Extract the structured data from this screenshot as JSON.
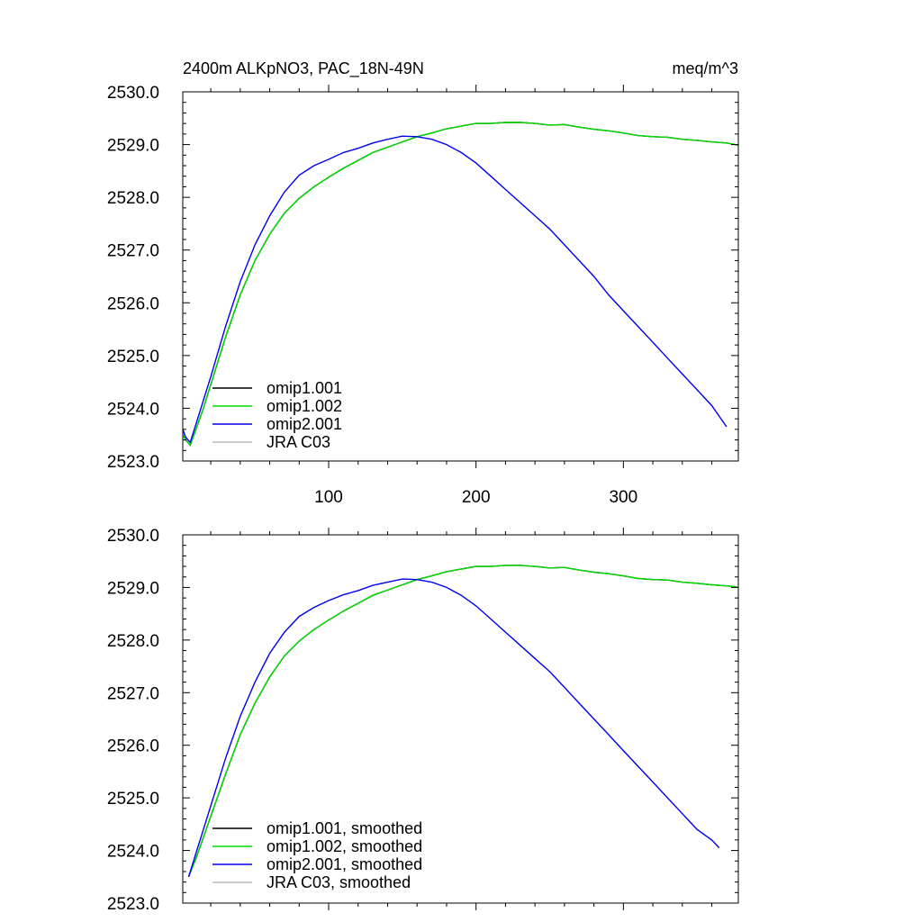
{
  "figure": {
    "title_left": "2400m ALKpNO3, PAC_18N-49N",
    "title_right": "meq/m^3"
  },
  "chart_data": [
    {
      "type": "line",
      "title": "2400m ALKpNO3, PAC_18N-49N",
      "units": "meq/m^3",
      "xlabel": "",
      "ylabel": "",
      "xlim": [
        1,
        378
      ],
      "ylim": [
        2523.0,
        2530.0
      ],
      "xticks": [
        100,
        200,
        300
      ],
      "xtick_labels": [
        "100",
        "200",
        "300"
      ],
      "yticks": [
        2523.0,
        2524.0,
        2525.0,
        2526.0,
        2527.0,
        2528.0,
        2529.0,
        2530.0
      ],
      "ytick_labels": [
        "2523.0",
        "2524.0",
        "2525.0",
        "2526.0",
        "2527.0",
        "2528.0",
        "2529.0",
        "2530.0"
      ],
      "grid": false,
      "legend_position": "bottom-left",
      "series": [
        {
          "name": "omip1.001",
          "color": "#000000",
          "x": [
            1,
            3,
            6,
            10,
            15,
            20,
            30,
            40,
            50,
            60,
            70,
            80,
            90,
            100,
            110,
            120,
            130,
            140,
            150,
            160,
            170,
            180,
            190,
            200,
            210,
            220,
            230,
            240,
            250,
            260,
            270,
            280,
            290,
            300,
            310,
            320,
            330,
            340,
            350,
            360,
            370,
            378
          ],
          "y": [
            2523.5,
            2523.4,
            2523.3,
            2523.6,
            2524.0,
            2524.45,
            2525.35,
            2526.15,
            2526.8,
            2527.3,
            2527.7,
            2527.98,
            2528.2,
            2528.38,
            2528.55,
            2528.7,
            2528.85,
            2528.95,
            2529.05,
            2529.15,
            2529.22,
            2529.3,
            2529.35,
            2529.4,
            2529.4,
            2529.42,
            2529.42,
            2529.4,
            2529.37,
            2529.38,
            2529.33,
            2529.29,
            2529.26,
            2529.22,
            2529.17,
            2529.15,
            2529.14,
            2529.1,
            2529.08,
            2529.05,
            2529.03,
            2528.99
          ]
        },
        {
          "name": "omip1.002",
          "color": "#00dd00",
          "x": [
            1,
            3,
            6,
            10,
            15,
            20,
            30,
            40,
            50,
            60,
            70,
            80,
            90,
            100,
            110,
            120,
            130,
            140,
            150,
            160,
            170,
            180,
            190,
            200,
            210,
            220,
            230,
            240,
            250,
            260,
            270,
            280,
            290,
            300,
            310,
            320,
            330,
            340,
            350,
            360,
            370,
            378
          ],
          "y": [
            2523.5,
            2523.4,
            2523.3,
            2523.6,
            2524.0,
            2524.45,
            2525.35,
            2526.15,
            2526.8,
            2527.3,
            2527.7,
            2527.98,
            2528.2,
            2528.38,
            2528.55,
            2528.7,
            2528.85,
            2528.95,
            2529.05,
            2529.15,
            2529.22,
            2529.3,
            2529.35,
            2529.4,
            2529.4,
            2529.42,
            2529.42,
            2529.4,
            2529.37,
            2529.38,
            2529.33,
            2529.29,
            2529.26,
            2529.22,
            2529.17,
            2529.15,
            2529.14,
            2529.1,
            2529.08,
            2529.05,
            2529.03,
            2528.99
          ]
        },
        {
          "name": "omip2.001",
          "color": "#0000ee",
          "x": [
            1,
            3,
            6,
            10,
            15,
            20,
            30,
            40,
            50,
            60,
            70,
            80,
            90,
            100,
            110,
            120,
            130,
            140,
            150,
            160,
            170,
            180,
            190,
            200,
            210,
            220,
            230,
            240,
            250,
            260,
            270,
            280,
            290,
            300,
            310,
            320,
            330,
            340,
            350,
            360,
            370
          ],
          "y": [
            2523.6,
            2523.45,
            2523.35,
            2523.7,
            2524.15,
            2524.6,
            2525.55,
            2526.4,
            2527.1,
            2527.65,
            2528.1,
            2528.42,
            2528.6,
            2528.72,
            2528.85,
            2528.93,
            2529.03,
            2529.1,
            2529.16,
            2529.15,
            2529.1,
            2529.0,
            2528.85,
            2528.65,
            2528.4,
            2528.15,
            2527.9,
            2527.65,
            2527.4,
            2527.1,
            2526.8,
            2526.5,
            2526.15,
            2525.85,
            2525.55,
            2525.25,
            2524.95,
            2524.65,
            2524.35,
            2524.05,
            2523.65
          ]
        },
        {
          "name": "JRA C03",
          "color": "#bbbbbb",
          "x": [],
          "y": []
        }
      ]
    },
    {
      "type": "line",
      "title": "",
      "xlabel": "",
      "ylabel": "",
      "xlim": [
        1,
        378
      ],
      "ylim": [
        2523.0,
        2530.0
      ],
      "xticks": [
        100,
        200,
        300
      ],
      "xtick_labels": [],
      "yticks": [
        2523.0,
        2524.0,
        2525.0,
        2526.0,
        2527.0,
        2528.0,
        2529.0,
        2530.0
      ],
      "ytick_labels": [
        "2523.0",
        "2524.0",
        "2525.0",
        "2526.0",
        "2527.0",
        "2528.0",
        "2529.0",
        "2530.0"
      ],
      "grid": false,
      "legend_position": "bottom-left",
      "series": [
        {
          "name": "omip1.001, smoothed",
          "color": "#000000",
          "x": [
            5,
            10,
            15,
            20,
            30,
            40,
            50,
            60,
            70,
            80,
            90,
            100,
            110,
            120,
            130,
            140,
            150,
            160,
            170,
            180,
            190,
            200,
            210,
            220,
            230,
            240,
            250,
            260,
            270,
            280,
            290,
            300,
            310,
            320,
            330,
            340,
            350,
            360,
            370,
            377
          ],
          "y": [
            2523.5,
            2523.85,
            2524.25,
            2524.65,
            2525.45,
            2526.2,
            2526.8,
            2527.3,
            2527.7,
            2527.98,
            2528.2,
            2528.38,
            2528.55,
            2528.7,
            2528.85,
            2528.95,
            2529.05,
            2529.15,
            2529.22,
            2529.3,
            2529.35,
            2529.4,
            2529.4,
            2529.42,
            2529.42,
            2529.4,
            2529.37,
            2529.38,
            2529.33,
            2529.29,
            2529.26,
            2529.22,
            2529.17,
            2529.15,
            2529.14,
            2529.1,
            2529.08,
            2529.05,
            2529.03,
            2529.01
          ]
        },
        {
          "name": "omip1.002, smoothed",
          "color": "#00dd00",
          "x": [
            5,
            10,
            15,
            20,
            30,
            40,
            50,
            60,
            70,
            80,
            90,
            100,
            110,
            120,
            130,
            140,
            150,
            160,
            170,
            180,
            190,
            200,
            210,
            220,
            230,
            240,
            250,
            260,
            270,
            280,
            290,
            300,
            310,
            320,
            330,
            340,
            350,
            360,
            370,
            377
          ],
          "y": [
            2523.5,
            2523.85,
            2524.25,
            2524.65,
            2525.45,
            2526.2,
            2526.8,
            2527.3,
            2527.7,
            2527.98,
            2528.2,
            2528.38,
            2528.55,
            2528.7,
            2528.85,
            2528.95,
            2529.05,
            2529.15,
            2529.22,
            2529.3,
            2529.35,
            2529.4,
            2529.4,
            2529.42,
            2529.42,
            2529.4,
            2529.37,
            2529.38,
            2529.33,
            2529.29,
            2529.26,
            2529.22,
            2529.17,
            2529.15,
            2529.14,
            2529.1,
            2529.08,
            2529.05,
            2529.03,
            2529.01
          ]
        },
        {
          "name": "omip2.001, smoothed",
          "color": "#0000ee",
          "x": [
            5,
            10,
            15,
            20,
            30,
            40,
            50,
            60,
            70,
            80,
            90,
            100,
            110,
            120,
            130,
            140,
            150,
            160,
            170,
            180,
            190,
            200,
            210,
            220,
            230,
            240,
            250,
            260,
            270,
            280,
            290,
            300,
            310,
            320,
            330,
            340,
            350,
            360,
            365
          ],
          "y": [
            2523.5,
            2523.95,
            2524.4,
            2524.85,
            2525.75,
            2526.55,
            2527.2,
            2527.75,
            2528.15,
            2528.45,
            2528.62,
            2528.75,
            2528.86,
            2528.94,
            2529.04,
            2529.1,
            2529.16,
            2529.15,
            2529.1,
            2529.0,
            2528.85,
            2528.65,
            2528.4,
            2528.15,
            2527.9,
            2527.65,
            2527.4,
            2527.1,
            2526.8,
            2526.5,
            2526.2,
            2525.9,
            2525.6,
            2525.3,
            2525.0,
            2524.7,
            2524.4,
            2524.2,
            2524.05
          ]
        },
        {
          "name": "JRA C03, smoothed",
          "color": "#bbbbbb",
          "x": [],
          "y": []
        }
      ]
    }
  ]
}
